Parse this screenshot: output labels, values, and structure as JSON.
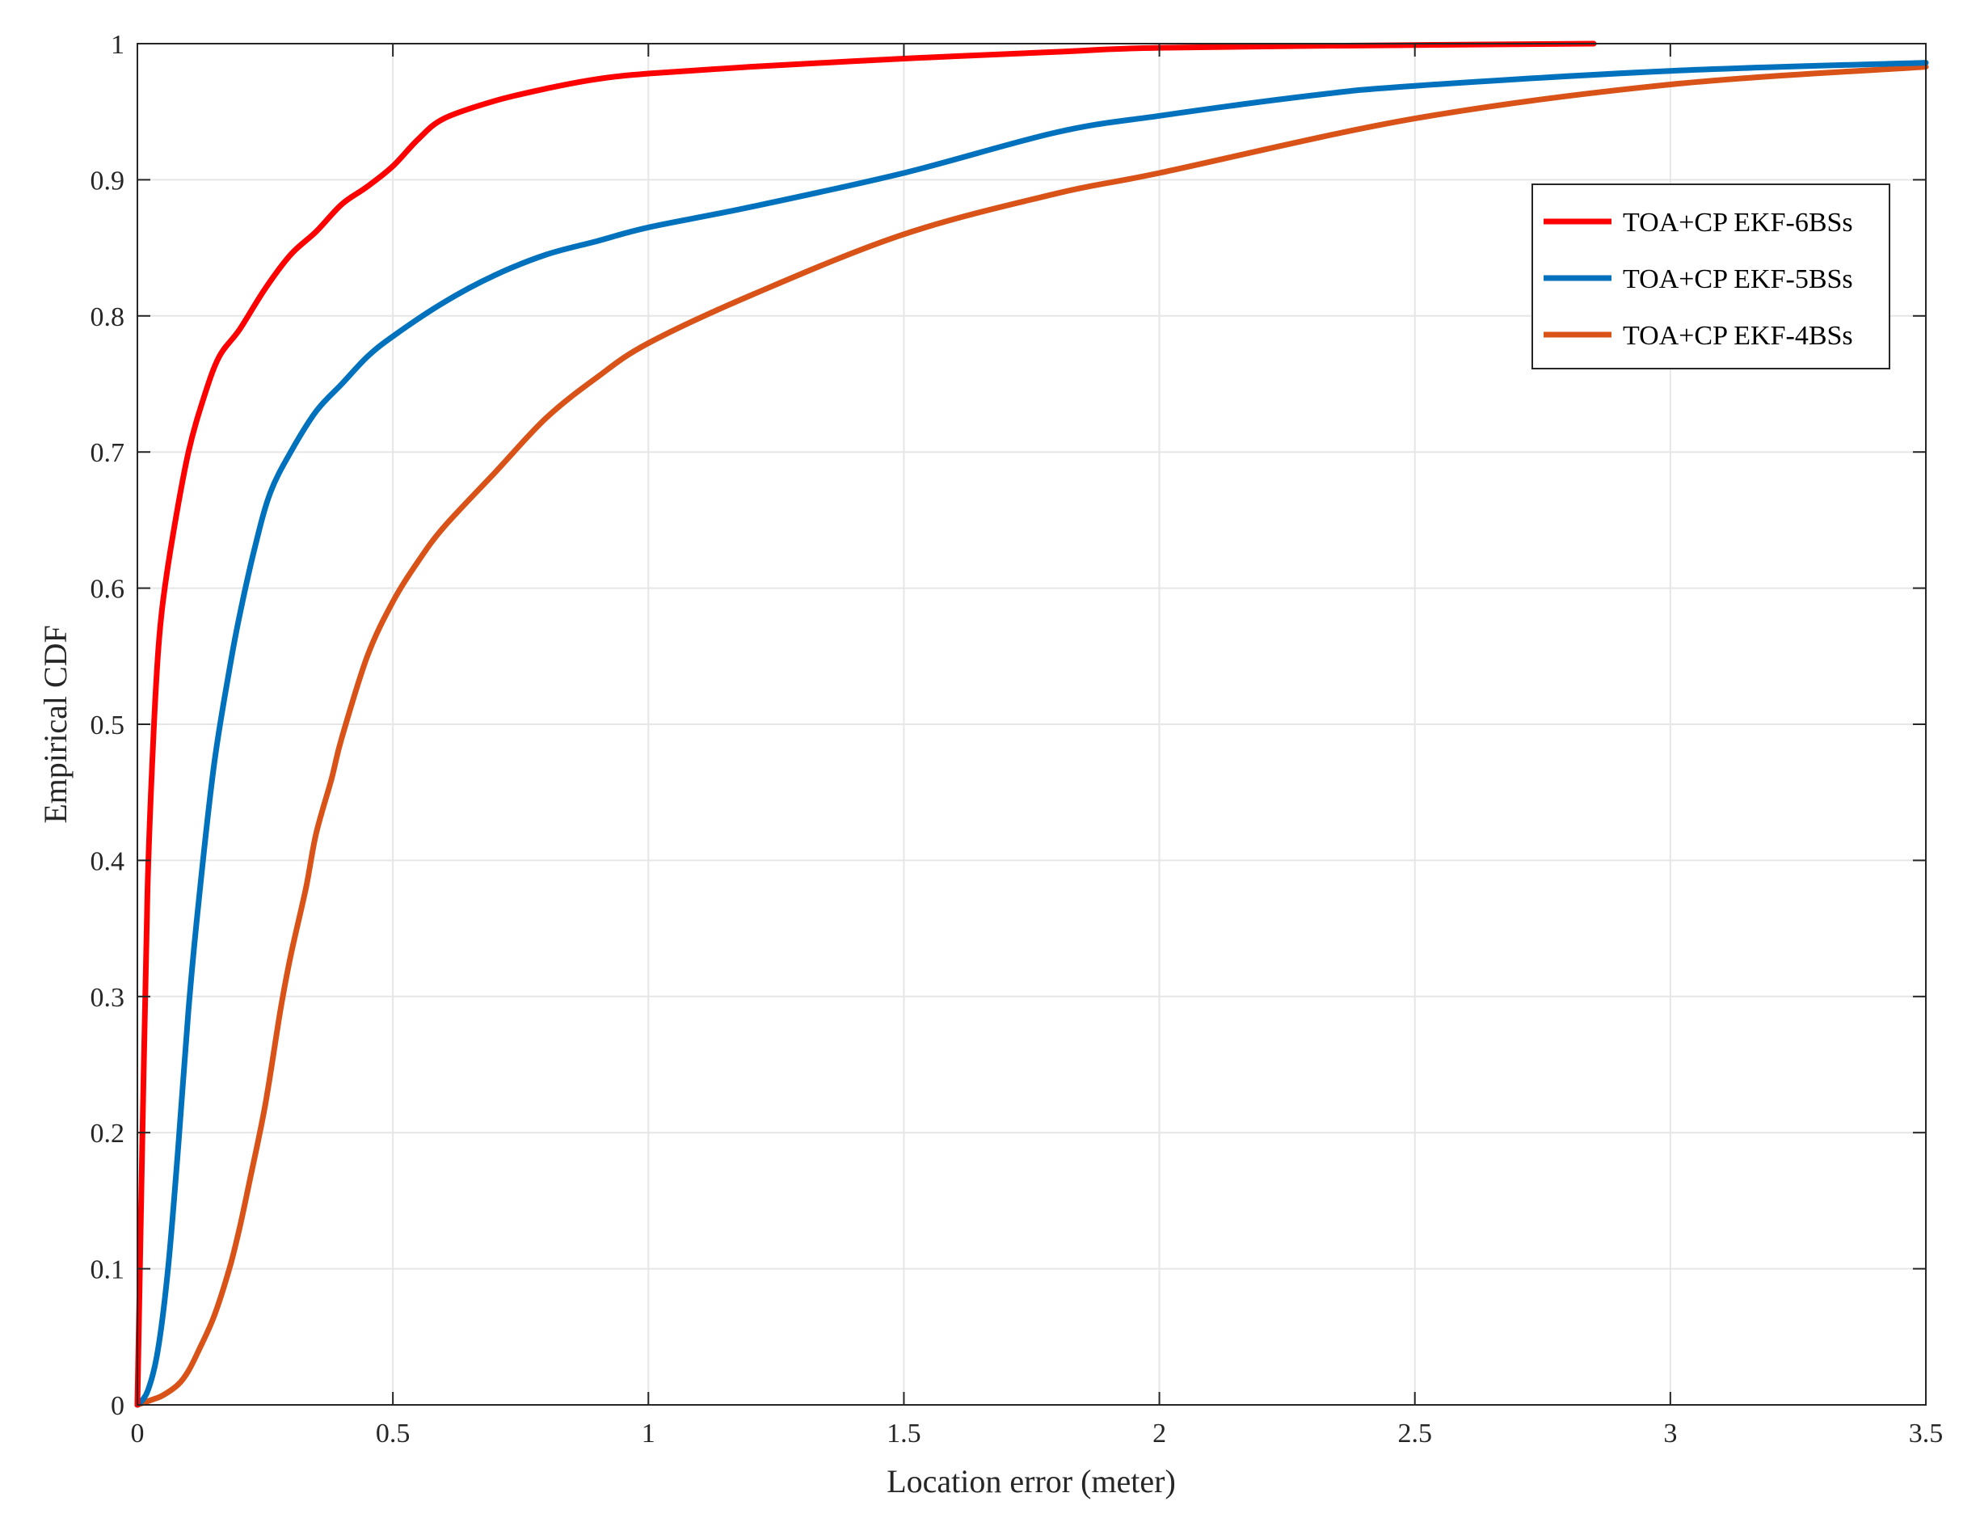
{
  "chart_data": {
    "type": "line",
    "title": "",
    "xlabel": "Location error (meter)",
    "ylabel": "Empirical CDF",
    "xlim": [
      0,
      3.5
    ],
    "ylim": [
      0,
      1
    ],
    "xticks": [
      0,
      0.5,
      1,
      1.5,
      2,
      2.5,
      3,
      3.5
    ],
    "xtick_labels": [
      "0",
      "0.5",
      "1",
      "1.5",
      "2",
      "2.5",
      "3",
      "3.5"
    ],
    "yticks": [
      0,
      0.1,
      0.2,
      0.3,
      0.4,
      0.5,
      0.6,
      0.7,
      0.8,
      0.9,
      1
    ],
    "ytick_labels": [
      "0",
      "0.1",
      "0.2",
      "0.3",
      "0.4",
      "0.5",
      "0.6",
      "0.7",
      "0.8",
      "0.9",
      "1"
    ],
    "grid": true,
    "legend_position": "top-right",
    "series": [
      {
        "name": "TOA+CP EKF-6BSs",
        "color": "#ff0000",
        "x": [
          0,
          0.01,
          0.02,
          0.03,
          0.04,
          0.05,
          0.07,
          0.1,
          0.13,
          0.16,
          0.2,
          0.25,
          0.3,
          0.35,
          0.4,
          0.45,
          0.5,
          0.55,
          0.6,
          0.7,
          0.8,
          0.9,
          1,
          1.2,
          1.5,
          1.8,
          2,
          2.5,
          2.85
        ],
        "y": [
          0,
          0.2,
          0.38,
          0.48,
          0.55,
          0.59,
          0.64,
          0.7,
          0.74,
          0.77,
          0.79,
          0.82,
          0.845,
          0.862,
          0.882,
          0.895,
          0.91,
          0.93,
          0.945,
          0.958,
          0.967,
          0.974,
          0.978,
          0.983,
          0.989,
          0.994,
          0.997,
          0.999,
          1.0
        ]
      },
      {
        "name": "TOA+CP EKF-5BSs",
        "color": "#0072bd",
        "x": [
          0,
          0.02,
          0.04,
          0.06,
          0.08,
          0.1,
          0.12,
          0.15,
          0.18,
          0.2,
          0.23,
          0.26,
          0.3,
          0.35,
          0.4,
          0.45,
          0.5,
          0.6,
          0.7,
          0.8,
          0.9,
          1,
          1.2,
          1.5,
          1.8,
          2,
          2.3,
          2.5,
          3,
          3.5
        ],
        "y": [
          0,
          0.01,
          0.04,
          0.1,
          0.19,
          0.29,
          0.37,
          0.47,
          0.54,
          0.58,
          0.63,
          0.67,
          0.7,
          0.73,
          0.75,
          0.77,
          0.785,
          0.81,
          0.83,
          0.845,
          0.855,
          0.865,
          0.88,
          0.905,
          0.935,
          0.947,
          0.962,
          0.969,
          0.98,
          0.986
        ]
      },
      {
        "name": "TOA+CP EKF-4BSs",
        "color": "#d95319",
        "x": [
          0,
          0.03,
          0.05,
          0.08,
          0.1,
          0.12,
          0.15,
          0.18,
          0.2,
          0.22,
          0.25,
          0.28,
          0.3,
          0.33,
          0.35,
          0.38,
          0.4,
          0.45,
          0.5,
          0.55,
          0.6,
          0.7,
          0.8,
          0.9,
          1,
          1.2,
          1.5,
          1.8,
          2,
          2.5,
          3,
          3.5
        ],
        "y": [
          0,
          0.004,
          0.007,
          0.015,
          0.025,
          0.04,
          0.065,
          0.1,
          0.13,
          0.165,
          0.22,
          0.29,
          0.33,
          0.38,
          0.42,
          0.46,
          0.49,
          0.55,
          0.59,
          0.62,
          0.645,
          0.685,
          0.725,
          0.755,
          0.78,
          0.815,
          0.86,
          0.89,
          0.905,
          0.945,
          0.97,
          0.983
        ]
      }
    ]
  }
}
